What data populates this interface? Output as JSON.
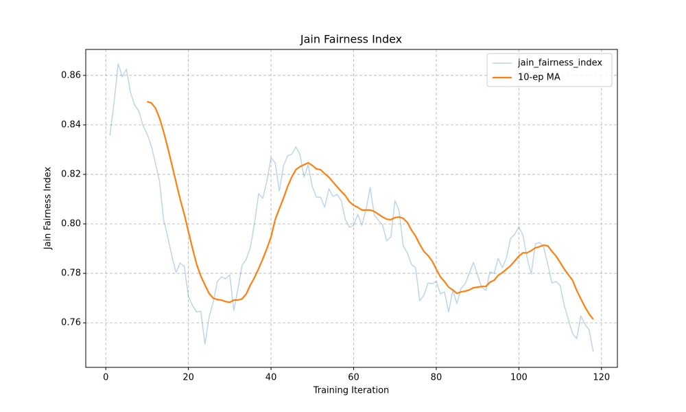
{
  "chart_data": {
    "type": "line",
    "title": "Jain Fairness Index",
    "x_label": "Training Iteration",
    "y_label": "Jain Fairness Index",
    "xlim": [
      -4.85,
      123.85
    ],
    "ylim": [
      0.742,
      0.8705
    ],
    "xticks": [
      0,
      20,
      40,
      60,
      80,
      100,
      120
    ],
    "yticks": [
      0.76,
      0.78,
      {
        "value": 0.8,
        "label": "0.80"
      },
      0.82,
      0.84,
      0.86
    ],
    "grid": true,
    "legend": "upper right",
    "series": [
      {
        "name": "jain_fairness_index",
        "color": "#1f77b4",
        "alpha": 0.3,
        "x": [
          1,
          2,
          3,
          4,
          5,
          6,
          7,
          8,
          9,
          10,
          11,
          12,
          13,
          14,
          15,
          16,
          17,
          18,
          19,
          20,
          21,
          22,
          23,
          24,
          25,
          26,
          27,
          28,
          29,
          30,
          31,
          32,
          33,
          34,
          35,
          36,
          37,
          38,
          39,
          40,
          41,
          42,
          43,
          44,
          45,
          46,
          47,
          48,
          49,
          50,
          51,
          52,
          53,
          54,
          55,
          56,
          57,
          58,
          59,
          60,
          61,
          62,
          63,
          64,
          65,
          66,
          67,
          68,
          69,
          70,
          71,
          72,
          73,
          74,
          75,
          76,
          77,
          78,
          79,
          80,
          81,
          82,
          83,
          84,
          85,
          86,
          87,
          88,
          89,
          90,
          91,
          92,
          93,
          94,
          95,
          96,
          97,
          98,
          99,
          100,
          101,
          102,
          103,
          104,
          105,
          106,
          107,
          108,
          109,
          110,
          111,
          112,
          113,
          114,
          115,
          116,
          117,
          118
        ],
        "values": [
          0.8358,
          0.849,
          0.8647,
          0.8594,
          0.8625,
          0.853,
          0.848,
          0.8456,
          0.8397,
          0.8364,
          0.8317,
          0.8247,
          0.8172,
          0.8017,
          0.7947,
          0.787,
          0.7803,
          0.7842,
          0.7828,
          0.7706,
          0.767,
          0.7644,
          0.7647,
          0.7514,
          0.7622,
          0.7683,
          0.7767,
          0.7786,
          0.7778,
          0.7794,
          0.765,
          0.7739,
          0.7833,
          0.7856,
          0.7906,
          0.8003,
          0.8122,
          0.8103,
          0.8172,
          0.8267,
          0.8247,
          0.8133,
          0.8233,
          0.8275,
          0.8281,
          0.8311,
          0.8281,
          0.8189,
          0.8239,
          0.815,
          0.8108,
          0.8108,
          0.8067,
          0.8142,
          0.8111,
          0.8119,
          0.8094,
          0.8017,
          0.7986,
          0.7994,
          0.8039,
          0.7994,
          0.8058,
          0.8147,
          0.8036,
          0.8014,
          0.7997,
          0.7931,
          0.7947,
          0.8094,
          0.8053,
          0.7911,
          0.7883,
          0.7836,
          0.7822,
          0.7689,
          0.7711,
          0.7761,
          0.7758,
          0.7767,
          0.7717,
          0.7725,
          0.7644,
          0.7733,
          0.7678,
          0.7739,
          0.7758,
          0.78,
          0.7844,
          0.7794,
          0.7744,
          0.7731,
          0.7806,
          0.78,
          0.7861,
          0.7822,
          0.7864,
          0.7942,
          0.7958,
          0.7989,
          0.7953,
          0.7861,
          0.7797,
          0.7919,
          0.7925,
          0.7906,
          0.7836,
          0.7761,
          0.7767,
          0.775,
          0.767,
          0.7611,
          0.7556,
          0.7536,
          0.7628,
          0.7594,
          0.7572,
          0.7483
        ]
      },
      {
        "name": "10-ep MA",
        "color": "#ff7f0e",
        "x": [
          10,
          11,
          12,
          13,
          14,
          15,
          16,
          17,
          18,
          19,
          20,
          21,
          22,
          23,
          24,
          25,
          26,
          27,
          28,
          29,
          30,
          31,
          32,
          33,
          34,
          35,
          36,
          37,
          38,
          39,
          40,
          41,
          42,
          43,
          44,
          45,
          46,
          47,
          48,
          49,
          50,
          51,
          52,
          53,
          54,
          55,
          56,
          57,
          58,
          59,
          60,
          61,
          62,
          63,
          64,
          65,
          66,
          67,
          68,
          69,
          70,
          71,
          72,
          73,
          74,
          75,
          76,
          77,
          78,
          79,
          80,
          81,
          82,
          83,
          84,
          85,
          86,
          87,
          88,
          89,
          90,
          91,
          92,
          93,
          94,
          95,
          96,
          97,
          98,
          99,
          100,
          101,
          102,
          103,
          104,
          105,
          106,
          107,
          108,
          109,
          110,
          111,
          112,
          113,
          114,
          115,
          116,
          117,
          118
        ],
        "values": [
          0.8494,
          0.8489,
          0.8469,
          0.8428,
          0.8372,
          0.8308,
          0.8239,
          0.8169,
          0.81,
          0.8039,
          0.7969,
          0.79,
          0.7836,
          0.7789,
          0.7753,
          0.7719,
          0.77,
          0.7694,
          0.7692,
          0.7686,
          0.7683,
          0.7692,
          0.7692,
          0.7697,
          0.7717,
          0.7753,
          0.7783,
          0.7819,
          0.7858,
          0.79,
          0.7947,
          0.8017,
          0.8061,
          0.8103,
          0.815,
          0.8189,
          0.8219,
          0.8231,
          0.8239,
          0.8247,
          0.8236,
          0.8222,
          0.8219,
          0.8203,
          0.8189,
          0.8169,
          0.815,
          0.8131,
          0.8114,
          0.8089,
          0.8075,
          0.8067,
          0.8056,
          0.8056,
          0.8056,
          0.805,
          0.8039,
          0.8028,
          0.8019,
          0.8017,
          0.8025,
          0.8028,
          0.8022,
          0.8006,
          0.7975,
          0.795,
          0.7917,
          0.7889,
          0.7872,
          0.785,
          0.7817,
          0.7786,
          0.7767,
          0.7744,
          0.7733,
          0.7719,
          0.7725,
          0.7728,
          0.7733,
          0.7742,
          0.7744,
          0.7747,
          0.7747,
          0.7764,
          0.7772,
          0.7792,
          0.7803,
          0.7817,
          0.7831,
          0.785,
          0.787,
          0.7883,
          0.7883,
          0.7892,
          0.7903,
          0.7908,
          0.7914,
          0.7911,
          0.7889,
          0.787,
          0.7844,
          0.7817,
          0.7794,
          0.7772,
          0.7731,
          0.7697,
          0.7664,
          0.7636,
          0.7614
        ]
      }
    ]
  }
}
